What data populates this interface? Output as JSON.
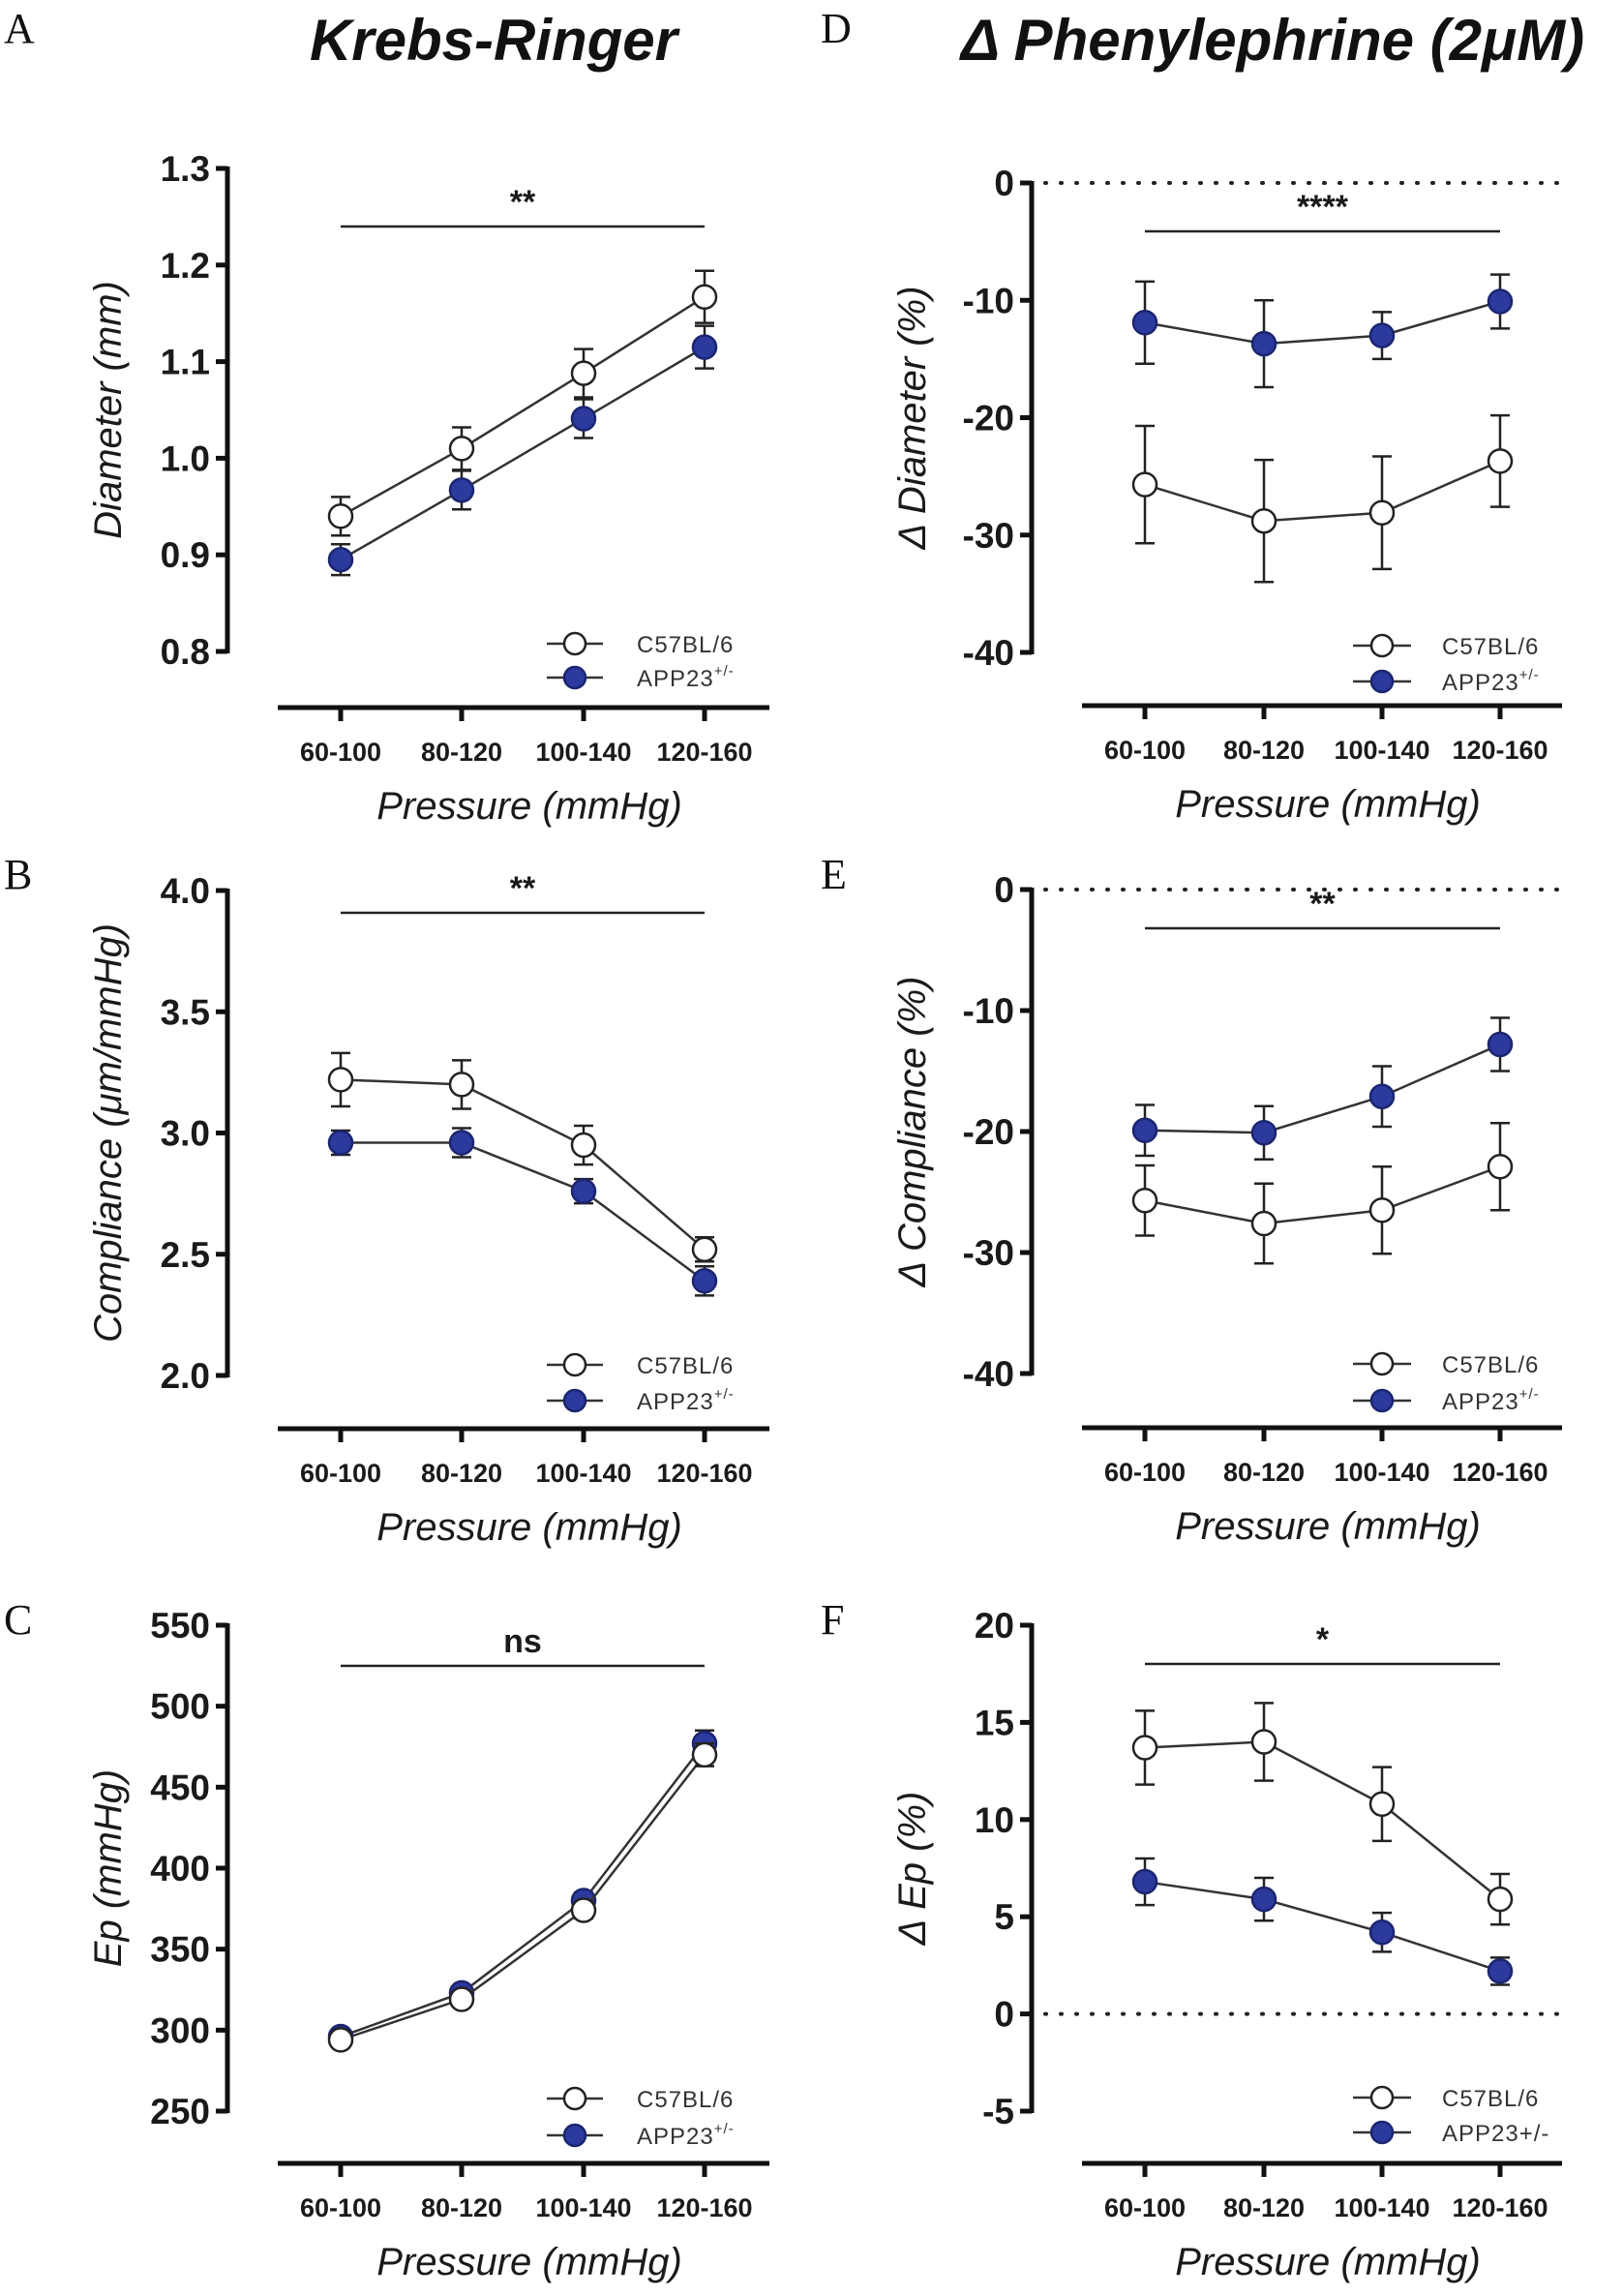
{
  "figure": {
    "column_titles": [
      "Krebs-Ringer",
      "Δ Phenylephrine (2μM)"
    ],
    "colors": {
      "wt_fill": "#ffffff",
      "wt_stroke": "#222222",
      "app_fill": "#2b3a9c",
      "app_stroke": "#1b2570",
      "line": "#333333",
      "axis": "#111111"
    }
  },
  "chart_data": [
    {
      "id": "A",
      "panel_label": "A",
      "type": "line",
      "title": "",
      "xlabel": "Pressure (mmHg)",
      "ylabel": "Diameter (mm)",
      "categories": [
        "60-100",
        "80-120",
        "100-140",
        "120-160"
      ],
      "ylim": [
        0.8,
        1.3
      ],
      "yticks": [
        0.8,
        0.9,
        1.0,
        1.1,
        1.2,
        1.3
      ],
      "ytick_labels": [
        "0.8",
        "0.9",
        "1.0",
        "1.1",
        "1.2",
        "1.3"
      ],
      "zero_line": false,
      "significance": "**",
      "legend": {
        "placement": "bottom-right",
        "entries": [
          {
            "name": "C57BL/6",
            "sup": ""
          },
          {
            "name": "APP23",
            "sup": "+/-"
          }
        ]
      },
      "series": [
        {
          "name": "C57BL/6",
          "style": "open",
          "values": [
            0.94,
            1.01,
            1.088,
            1.167
          ],
          "errors": [
            0.02,
            0.022,
            0.025,
            0.027
          ]
        },
        {
          "name": "APP23+/-",
          "style": "filled",
          "values": [
            0.895,
            0.967,
            1.041,
            1.115
          ],
          "errors": [
            0.016,
            0.02,
            0.02,
            0.022
          ]
        }
      ]
    },
    {
      "id": "B",
      "panel_label": "B",
      "type": "line",
      "title": "",
      "xlabel": "Pressure (mmHg)",
      "ylabel": "Compliance (μm/mmHg)",
      "categories": [
        "60-100",
        "80-120",
        "100-140",
        "120-160"
      ],
      "ylim": [
        2.0,
        4.0
      ],
      "yticks": [
        2.0,
        2.5,
        3.0,
        3.5,
        4.0
      ],
      "ytick_labels": [
        "2.0",
        "2.5",
        "3.0",
        "3.5",
        "4.0"
      ],
      "zero_line": false,
      "significance": "**",
      "legend": {
        "placement": "bottom-right",
        "entries": [
          {
            "name": "C57BL/6",
            "sup": ""
          },
          {
            "name": "APP23",
            "sup": "+/-"
          }
        ]
      },
      "series": [
        {
          "name": "C57BL/6",
          "style": "open",
          "values": [
            3.22,
            3.2,
            2.95,
            2.52
          ],
          "errors": [
            0.11,
            0.1,
            0.08,
            0.05
          ]
        },
        {
          "name": "APP23+/-",
          "style": "filled",
          "values": [
            2.96,
            2.96,
            2.76,
            2.39
          ],
          "errors": [
            0.05,
            0.06,
            0.05,
            0.06
          ]
        }
      ]
    },
    {
      "id": "C",
      "panel_label": "C",
      "type": "line",
      "title": "",
      "xlabel": "Pressure (mmHg)",
      "ylabel": "Ep (mmHg)",
      "categories": [
        "60-100",
        "80-120",
        "100-140",
        "120-160"
      ],
      "ylim": [
        250,
        550
      ],
      "yticks": [
        250,
        300,
        350,
        400,
        450,
        500,
        550
      ],
      "ytick_labels": [
        "250",
        "300",
        "350",
        "400",
        "450",
        "500",
        "550"
      ],
      "zero_line": false,
      "significance": "ns",
      "legend": {
        "placement": "bottom-right",
        "entries": [
          {
            "name": "C57BL/6",
            "sup": ""
          },
          {
            "name": "APP23",
            "sup": "+/-"
          }
        ]
      },
      "series": [
        {
          "name": "APP23+/-",
          "style": "filled",
          "values": [
            296,
            323,
            380,
            477
          ],
          "errors": [
            4,
            4,
            5,
            8
          ]
        },
        {
          "name": "C57BL/6",
          "style": "open",
          "values": [
            294,
            319,
            374,
            470
          ],
          "errors": [
            4,
            4,
            5,
            7
          ]
        }
      ]
    },
    {
      "id": "D",
      "panel_label": "D",
      "type": "line",
      "title": "",
      "xlabel": "Pressure (mmHg)",
      "ylabel": "Δ Diameter (%)",
      "categories": [
        "60-100",
        "80-120",
        "100-140",
        "120-160"
      ],
      "ylim": [
        -40,
        0
      ],
      "yticks": [
        -40,
        -30,
        -20,
        -10,
        0
      ],
      "ytick_labels": [
        "-40",
        "-30",
        "-20",
        "-10",
        "0"
      ],
      "zero_line": true,
      "significance": "****",
      "legend": {
        "placement": "bottom-right",
        "entries": [
          {
            "name": "C57BL/6",
            "sup": ""
          },
          {
            "name": "APP23",
            "sup": "+/-"
          }
        ]
      },
      "series": [
        {
          "name": "C57BL/6",
          "style": "open",
          "values": [
            -25.7,
            -28.8,
            -28.1,
            -23.7
          ],
          "errors": [
            5.0,
            5.2,
            4.8,
            3.9
          ]
        },
        {
          "name": "APP23+/-",
          "style": "filled",
          "values": [
            -11.9,
            -13.7,
            -13.0,
            -10.1
          ],
          "errors": [
            3.5,
            3.7,
            2.0,
            2.3
          ]
        }
      ]
    },
    {
      "id": "E",
      "panel_label": "E",
      "type": "line",
      "title": "",
      "xlabel": "Pressure (mmHg)",
      "ylabel": "Δ Compliance (%)",
      "categories": [
        "60-100",
        "80-120",
        "100-140",
        "120-160"
      ],
      "ylim": [
        -40,
        0
      ],
      "yticks": [
        -40,
        -30,
        -20,
        -10,
        0
      ],
      "ytick_labels": [
        "-40",
        "-30",
        "-20",
        "-10",
        "0"
      ],
      "zero_line": true,
      "significance": "**",
      "legend": {
        "placement": "bottom-right",
        "entries": [
          {
            "name": "C57BL/6",
            "sup": ""
          },
          {
            "name": "APP23",
            "sup": "+/-"
          }
        ]
      },
      "series": [
        {
          "name": "C57BL/6",
          "style": "open",
          "values": [
            -25.7,
            -27.6,
            -26.5,
            -22.9
          ],
          "errors": [
            2.9,
            3.3,
            3.6,
            3.6
          ]
        },
        {
          "name": "APP23+/-",
          "style": "filled",
          "values": [
            -19.9,
            -20.1,
            -17.1,
            -12.8
          ],
          "errors": [
            2.1,
            2.2,
            2.5,
            2.2
          ]
        }
      ]
    },
    {
      "id": "F",
      "panel_label": "F",
      "type": "line",
      "title": "",
      "xlabel": "Pressure (mmHg)",
      "ylabel": "Δ Ep (%)",
      "categories": [
        "60-100",
        "80-120",
        "100-140",
        "120-160"
      ],
      "ylim": [
        -5,
        20
      ],
      "yticks": [
        -5,
        0,
        5,
        10,
        15,
        20
      ],
      "ytick_labels": [
        "-5",
        "0",
        "5",
        "10",
        "15",
        "20"
      ],
      "zero_line": true,
      "significance": "*",
      "legend": {
        "placement": "bottom-right",
        "entries": [
          {
            "name": "C57BL/6",
            "sup": ""
          },
          {
            "name": "APP23+/-",
            "sup": ""
          }
        ]
      },
      "series": [
        {
          "name": "C57BL/6",
          "style": "open",
          "values": [
            13.7,
            14.0,
            10.8,
            5.9
          ],
          "errors": [
            1.9,
            2.0,
            1.9,
            1.3
          ]
        },
        {
          "name": "APP23+/-",
          "style": "filled",
          "values": [
            6.8,
            5.9,
            4.2,
            2.2
          ],
          "errors": [
            1.2,
            1.1,
            1.0,
            0.7
          ]
        }
      ]
    }
  ]
}
